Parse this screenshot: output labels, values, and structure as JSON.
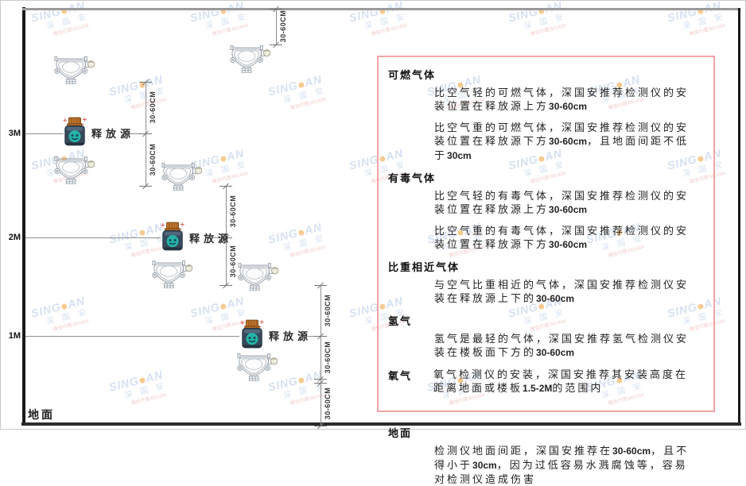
{
  "diagram": {
    "axis_labels": [
      "3M",
      "2M",
      "1M"
    ],
    "ground_label": "地面",
    "release_source_label": "释放源",
    "dimension_label": "30-60CM"
  },
  "panel": {
    "sections": [
      {
        "heading": "可燃气体",
        "inline": false,
        "gap": false,
        "paragraphs": [
          "比空气轻的可燃气体，深国安推荐检测仪的安装位置在释放源上方30-60cm",
          "比空气重的可燃气体，深国安推荐检测仪的安装位置在释放源下方30-60cm，且地面间距不低于30cm"
        ]
      },
      {
        "heading": "有毒气体",
        "inline": false,
        "gap": false,
        "paragraphs": [
          "比空气轻的有毒气体，深国安推荐检测仪的安装位置在释放源上方30-60cm",
          "比空气重的有毒气体，深国安推荐检测仪的安装位置在释放源下方30-60cm"
        ]
      },
      {
        "heading": "比重相近气体",
        "inline": false,
        "gap": false,
        "paragraphs": [
          "与空气比重相近的气体，深国安推荐检测仪安装在释放源上下的30-60cm"
        ]
      },
      {
        "heading": "氢气",
        "inline": false,
        "gap": false,
        "paragraphs": [
          "氢气是最轻的气体，深国安推荐氢气检测仪安装在楼板面下方的30-60cm"
        ]
      },
      {
        "heading": "氧气",
        "inline": true,
        "gap": false,
        "paragraphs": [
          "氧气检测仪的安装，深国安推荐其安装高度在距离地面或楼板1.5-2M的范围内"
        ]
      },
      {
        "heading": "地面",
        "inline": false,
        "gap": true,
        "paragraphs": [
          "检测仪地面间距，深国安推荐在30-60cm，且不得小于30cm，因为过低容易水溅腐蚀等，容易对检测仪造成伤害"
        ]
      }
    ]
  },
  "watermark": {
    "brand_left": "SING",
    "brand_right": "AN",
    "company": "深 国 安",
    "agent_line": "微信代理:661434"
  },
  "colors": {
    "panel_border": "#f2a4a4",
    "watermark_blue": "#b3c8e6",
    "watermark_orange": "#f0a13a",
    "watermark_red": "#e89b9b",
    "source_body": "#37495a",
    "source_face": "#26b2a7",
    "source_lid": "#c0742c",
    "line_gray": "#8f8f8f"
  }
}
